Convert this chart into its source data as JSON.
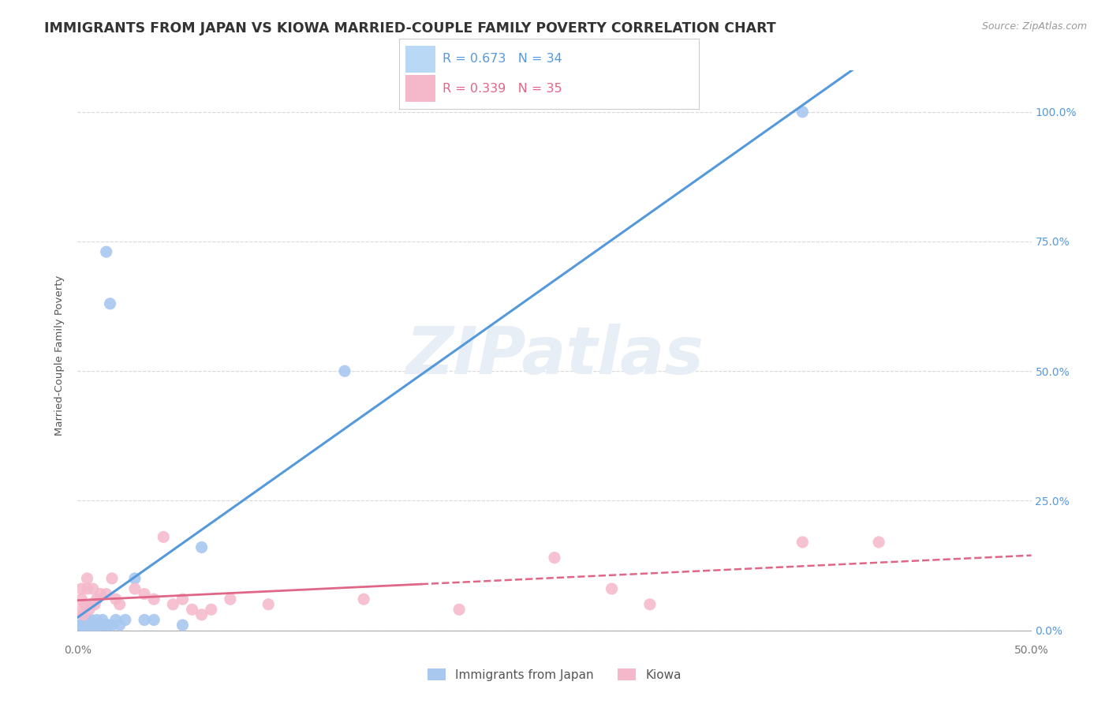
{
  "title": "IMMIGRANTS FROM JAPAN VS KIOWA MARRIED-COUPLE FAMILY POVERTY CORRELATION CHART",
  "source": "Source: ZipAtlas.com",
  "ylabel": "Married-Couple Family Poverty",
  "watermark": "ZIPatlas",
  "xlim": [
    0.0,
    0.5
  ],
  "ylim": [
    -0.02,
    1.08
  ],
  "xtick_labels": [
    "0.0%",
    "",
    "",
    "",
    "50.0%"
  ],
  "xtick_vals": [
    0.0,
    0.125,
    0.25,
    0.375,
    0.5
  ],
  "ytick_labels": [
    "",
    "",
    "",
    "",
    ""
  ],
  "ytick_vals": [
    0.0,
    0.25,
    0.5,
    0.75,
    1.0
  ],
  "right_ytick_labels": [
    "100.0%",
    "75.0%",
    "50.0%",
    "25.0%",
    "0.0%"
  ],
  "right_ytick_vals": [
    1.0,
    0.75,
    0.5,
    0.25,
    0.0
  ],
  "legend_entries": [
    {
      "label": "R = 0.673   N = 34",
      "color": "#7db3e8"
    },
    {
      "label": "R = 0.339   N = 35",
      "color": "#f4a7b9"
    }
  ],
  "scatter_japan_x": [
    0.001,
    0.002,
    0.003,
    0.003,
    0.004,
    0.004,
    0.005,
    0.005,
    0.006,
    0.007,
    0.007,
    0.008,
    0.009,
    0.009,
    0.01,
    0.01,
    0.011,
    0.012,
    0.013,
    0.014,
    0.015,
    0.016,
    0.017,
    0.018,
    0.02,
    0.022,
    0.025,
    0.03,
    0.035,
    0.04,
    0.055,
    0.065,
    0.14,
    0.38
  ],
  "scatter_japan_y": [
    0.01,
    0.01,
    0.01,
    0.015,
    0.01,
    0.02,
    0.01,
    0.02,
    0.01,
    0.01,
    0.02,
    0.01,
    0.01,
    0.015,
    0.02,
    0.01,
    0.01,
    0.01,
    0.02,
    0.01,
    0.73,
    0.01,
    0.63,
    0.01,
    0.02,
    0.01,
    0.02,
    0.1,
    0.02,
    0.02,
    0.01,
    0.16,
    0.5,
    1.0
  ],
  "scatter_kiowa_x": [
    0.001,
    0.002,
    0.002,
    0.003,
    0.004,
    0.005,
    0.005,
    0.006,
    0.007,
    0.008,
    0.009,
    0.01,
    0.012,
    0.015,
    0.018,
    0.02,
    0.022,
    0.03,
    0.035,
    0.04,
    0.045,
    0.05,
    0.055,
    0.06,
    0.065,
    0.07,
    0.08,
    0.1,
    0.15,
    0.2,
    0.25,
    0.28,
    0.3,
    0.38,
    0.42
  ],
  "scatter_kiowa_y": [
    0.04,
    0.06,
    0.08,
    0.03,
    0.05,
    0.08,
    0.1,
    0.04,
    0.05,
    0.08,
    0.05,
    0.06,
    0.07,
    0.07,
    0.1,
    0.06,
    0.05,
    0.08,
    0.07,
    0.06,
    0.18,
    0.05,
    0.06,
    0.04,
    0.03,
    0.04,
    0.06,
    0.05,
    0.06,
    0.04,
    0.14,
    0.08,
    0.05,
    0.17,
    0.17
  ],
  "japan_color": "#a8c8f0",
  "kiowa_color": "#f5b8cb",
  "japan_line_color": "#5599dd",
  "kiowa_line_color": "#e06688",
  "kiowa_line_solid_end": 0.18,
  "background_color": "#ffffff",
  "grid_color": "#d8d8d8",
  "title_color": "#333333",
  "title_fontsize": 12.5,
  "axis_label_fontsize": 9.5,
  "tick_fontsize": 10,
  "source_fontsize": 9,
  "watermark_color": "#e8eef5",
  "watermark_fontsize": 60,
  "legend_box_color_japan": "#b8d8f5",
  "legend_box_color_kiowa": "#f5b8cb",
  "legend_text_color_japan": "#5599dd",
  "legend_text_color_kiowa": "#e06688",
  "bottom_legend_labels": [
    "Immigrants from Japan",
    "Kiowa"
  ],
  "point_size": 120
}
